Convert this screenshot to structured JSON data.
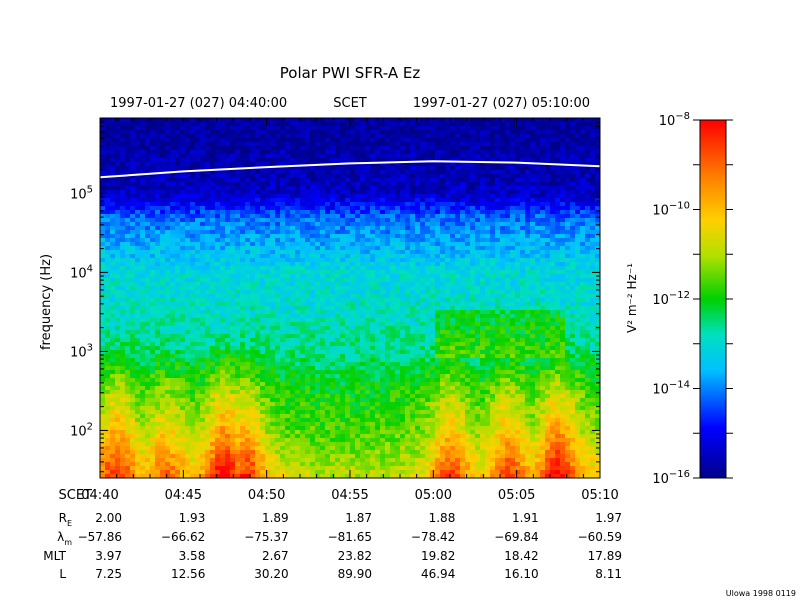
{
  "chart_data": {
    "type": "heatmap",
    "title": "Polar PWI SFR-A Ez",
    "time_header": {
      "start": "1997-01-27 (027) 04:40:00",
      "center": "SCET",
      "end": "1997-01-27 (027) 05:10:00"
    },
    "ylabel": "frequency (Hz)",
    "y_scale": "log",
    "ylim": [
      25,
      900000
    ],
    "xlim": [
      "04:40",
      "05:10"
    ],
    "y_ticks": [
      {
        "base": "10",
        "exp": "2",
        "value": 100
      },
      {
        "base": "10",
        "exp": "3",
        "value": 1000
      },
      {
        "base": "10",
        "exp": "4",
        "value": 10000
      },
      {
        "base": "10",
        "exp": "5",
        "value": 100000
      }
    ],
    "colorbar": {
      "label": "V² m⁻² Hz⁻¹",
      "scale": "log",
      "range": [
        1e-16,
        1e-08
      ],
      "ticks": [
        {
          "base": "10",
          "exp": "−8",
          "value": 1e-08
        },
        {
          "base": "10",
          "exp": "−10",
          "value": 1e-10
        },
        {
          "base": "10",
          "exp": "−12",
          "value": 1e-12
        },
        {
          "base": "10",
          "exp": "−14",
          "value": 1e-14
        },
        {
          "base": "10",
          "exp": "−16",
          "value": 1e-16
        }
      ]
    },
    "ephemeris": {
      "scet": [
        "04:40",
        "04:45",
        "04:50",
        "04:55",
        "05:00",
        "05:05",
        "05:10"
      ],
      "rows": [
        {
          "label": "R",
          "sub": "E",
          "values": [
            "2.00",
            "1.93",
            "1.89",
            "1.87",
            "1.88",
            "1.91",
            "1.97"
          ]
        },
        {
          "label": "λ",
          "sub": "m",
          "values": [
            "−57.86",
            "−66.62",
            "−75.37",
            "−81.65",
            "−78.42",
            "−69.84",
            "−60.59"
          ]
        },
        {
          "label": "MLT",
          "sub": "",
          "values": [
            "3.97",
            "3.58",
            "2.67",
            "23.82",
            "19.82",
            "18.42",
            "17.89"
          ]
        },
        {
          "label": "L",
          "sub": "",
          "values": [
            "7.25",
            "12.56",
            "30.20",
            "89.90",
            "46.94",
            "16.10",
            "8.11"
          ]
        }
      ]
    },
    "scet_label": "SCET",
    "white_trace": {
      "description": "",
      "times": [
        "04:40",
        "04:45",
        "04:50",
        "04:55",
        "05:00",
        "05:05",
        "05:10"
      ],
      "freq_hz": [
        160000,
        190000,
        215000,
        240000,
        255000,
        245000,
        220000
      ]
    },
    "spectrogram_profile": {
      "note": "",
      "freq_nodes_hz": [
        25,
        100,
        300,
        1000,
        3000,
        10000,
        50000,
        100000,
        900000
      ],
      "log_psd_nodes": [
        -10.2,
        -11.2,
        -11.7,
        -12.5,
        -12.9,
        -13.1,
        -14.2,
        -15.5,
        -15.9
      ]
    }
  },
  "footer": {
    "credit": "Ulowa 1998 0119"
  }
}
